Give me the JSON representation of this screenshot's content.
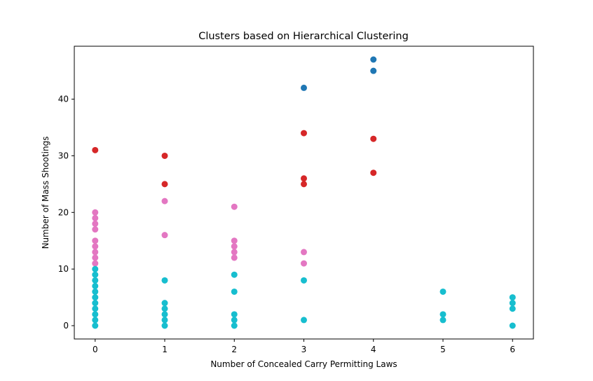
{
  "chart_data": {
    "type": "scatter",
    "title": "Clusters based on Hierarchical Clustering",
    "xlabel": "Number of Concealed Carry Permitting Laws",
    "ylabel": "Number of Mass Shootings",
    "xlim": [
      -0.3,
      6.3
    ],
    "ylim": [
      -2.35,
      49.35
    ],
    "xticks": [
      0,
      1,
      2,
      3,
      4,
      5,
      6
    ],
    "yticks": [
      0,
      10,
      20,
      30,
      40
    ],
    "grid": false,
    "colors": {
      "cluster_blue": "#1f77b4",
      "cluster_red": "#d62728",
      "cluster_pink": "#e377c2",
      "cluster_cyan": "#17becf"
    },
    "series": [
      {
        "color": "#1f77b4",
        "points": [
          [
            3,
            42
          ],
          [
            4,
            47
          ],
          [
            4,
            45
          ]
        ]
      },
      {
        "color": "#d62728",
        "points": [
          [
            0,
            31
          ],
          [
            1,
            30
          ],
          [
            1,
            25
          ],
          [
            3,
            34
          ],
          [
            3,
            26
          ],
          [
            3,
            25
          ],
          [
            4,
            33
          ],
          [
            4,
            27
          ]
        ]
      },
      {
        "color": "#e377c2",
        "points": [
          [
            0,
            20
          ],
          [
            0,
            19
          ],
          [
            0,
            18
          ],
          [
            0,
            17
          ],
          [
            0,
            15
          ],
          [
            0,
            14
          ],
          [
            0,
            13
          ],
          [
            0,
            12
          ],
          [
            0,
            11
          ],
          [
            1,
            22
          ],
          [
            1,
            16
          ],
          [
            2,
            21
          ],
          [
            2,
            15
          ],
          [
            2,
            14
          ],
          [
            2,
            13
          ],
          [
            2,
            12
          ],
          [
            3,
            13
          ],
          [
            3,
            11
          ]
        ]
      },
      {
        "color": "#17becf",
        "points": [
          [
            0,
            10
          ],
          [
            0,
            9
          ],
          [
            0,
            8
          ],
          [
            0,
            7
          ],
          [
            0,
            6
          ],
          [
            0,
            5
          ],
          [
            0,
            4
          ],
          [
            0,
            3
          ],
          [
            0,
            2
          ],
          [
            0,
            1
          ],
          [
            0,
            0
          ],
          [
            1,
            8
          ],
          [
            1,
            4
          ],
          [
            1,
            3
          ],
          [
            1,
            2
          ],
          [
            1,
            1
          ],
          [
            1,
            0
          ],
          [
            2,
            9
          ],
          [
            2,
            6
          ],
          [
            2,
            2
          ],
          [
            2,
            1
          ],
          [
            2,
            0
          ],
          [
            3,
            8
          ],
          [
            3,
            1
          ],
          [
            5,
            6
          ],
          [
            5,
            2
          ],
          [
            5,
            1
          ],
          [
            6,
            5
          ],
          [
            6,
            4
          ],
          [
            6,
            3
          ],
          [
            6,
            0
          ]
        ]
      }
    ]
  }
}
